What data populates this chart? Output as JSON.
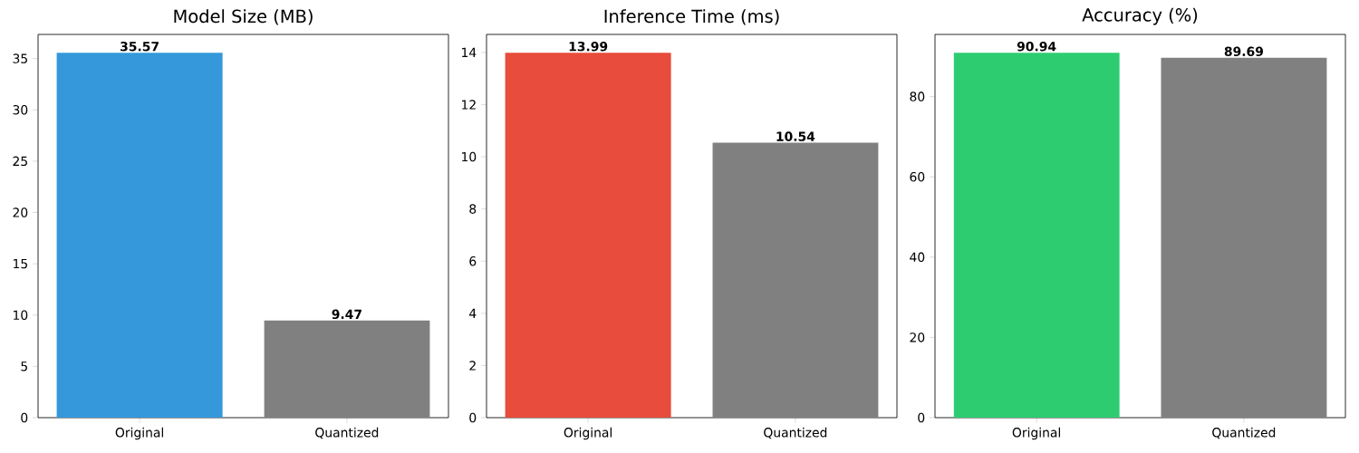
{
  "chart_data": [
    {
      "type": "bar",
      "title": "Model Size (MB)",
      "categories": [
        "Original",
        "Quantized"
      ],
      "values": [
        35.57,
        9.47
      ],
      "colors": [
        "#3498db",
        "#808080"
      ],
      "ylim": [
        0,
        37.35
      ],
      "yticks": [
        0,
        5,
        10,
        15,
        20,
        25,
        30,
        35
      ],
      "data_labels": true
    },
    {
      "type": "bar",
      "title": "Inference Time (ms)",
      "categories": [
        "Original",
        "Quantized"
      ],
      "values": [
        13.99,
        10.54
      ],
      "colors": [
        "#e74c3c",
        "#808080"
      ],
      "ylim": [
        0,
        14.69
      ],
      "yticks": [
        0,
        2,
        4,
        6,
        8,
        10,
        12,
        14
      ],
      "data_labels": true
    },
    {
      "type": "bar",
      "title": "Accuracy (%)",
      "categories": [
        "Original",
        "Quantized"
      ],
      "values": [
        90.94,
        89.69
      ],
      "colors": [
        "#2ecc71",
        "#808080"
      ],
      "ylim": [
        0,
        95.49
      ],
      "yticks": [
        0,
        20,
        40,
        60,
        80
      ],
      "data_labels": true
    }
  ]
}
